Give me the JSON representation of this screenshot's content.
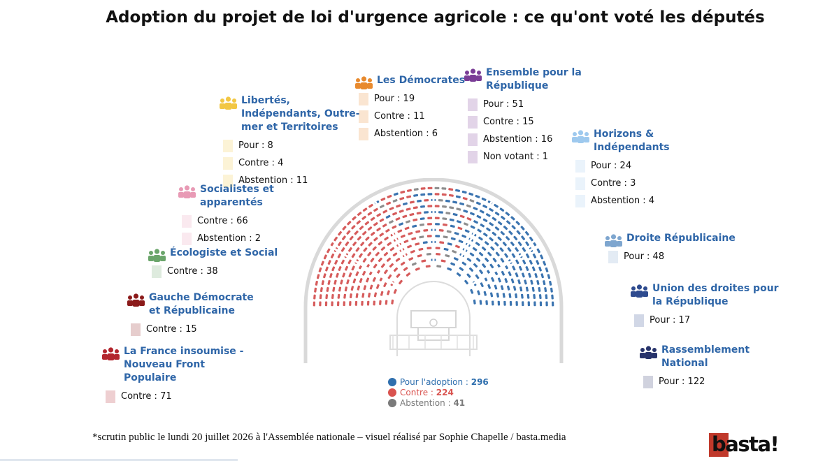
{
  "title": "Adoption du projet de loi d'urgence agricole : ce qu'ont voté les députés",
  "footer": "*scrutin public le lundi 20 juillet 2026 à l'Assemblée nationale – visuel réalisé par Sophie Chapelle / basta.media",
  "logo": "basta!",
  "colors": {
    "pour": "#3b74b0",
    "contre": "#d65b5b",
    "abstention": "#8e8e8e",
    "hemicycle_frame": "#d9d9d9"
  },
  "chart_data": {
    "type": "hemicycle",
    "totals": [
      {
        "key": "pour",
        "label": "Pour l'adoption :",
        "value": "296",
        "color": "#2f6fae"
      },
      {
        "key": "contre",
        "label": "Contre :",
        "value": "224",
        "color": "#d9534f"
      },
      {
        "key": "abstention",
        "label": "Abstention :",
        "value": "41",
        "color": "#7a7a7a"
      }
    ],
    "groups": [
      {
        "name": "La France insoumise - Nouveau Front Populaire",
        "color": "#b3262e",
        "stats": [
          {
            "label": "Contre : 71",
            "value": 71
          }
        ]
      },
      {
        "name": "Gauche Démocrate et Républicaine",
        "color": "#8b1a1a",
        "stats": [
          {
            "label": "Contre : 15",
            "value": 15
          }
        ]
      },
      {
        "name": "Écologiste et Social",
        "color": "#6aa56a",
        "stats": [
          {
            "label": "Contre : 38",
            "value": 38
          }
        ]
      },
      {
        "name": "Socialistes et apparentés",
        "color": "#e89ab5",
        "stats": [
          {
            "label": "Contre : 66",
            "value": 66
          },
          {
            "label": "Abstention : 2",
            "value": 2
          }
        ]
      },
      {
        "name": "Libertés, Indépendants, Outre-mer et Territoires",
        "color": "#f2c744",
        "stats": [
          {
            "label": "Pour : 8",
            "value": 8
          },
          {
            "label": "Contre : 4",
            "value": 4
          },
          {
            "label": "Abstention : 11",
            "value": 11
          }
        ]
      },
      {
        "name": "Les Démocrates",
        "color": "#e88a2e",
        "stats": [
          {
            "label": "Pour : 19",
            "value": 19
          },
          {
            "label": "Contre : 11",
            "value": 11
          },
          {
            "label": "Abstention : 6",
            "value": 6
          }
        ]
      },
      {
        "name": "Ensemble pour la République",
        "color": "#7a3d96",
        "stats": [
          {
            "label": "Pour : 51",
            "value": 51
          },
          {
            "label": "Contre : 15",
            "value": 15
          },
          {
            "label": "Abstention : 16",
            "value": 16
          },
          {
            "label": "Non votant : 1",
            "value": 1
          }
        ]
      },
      {
        "name": "Horizons & Indépendants",
        "color": "#9ec9ee",
        "stats": [
          {
            "label": "Pour : 24",
            "value": 24
          },
          {
            "label": "Contre : 3",
            "value": 3
          },
          {
            "label": "Abstention : 4",
            "value": 4
          }
        ]
      },
      {
        "name": "Droite Républicaine",
        "color": "#7ea6cf",
        "stats": [
          {
            "label": "Pour : 48",
            "value": 48
          }
        ]
      },
      {
        "name": "Union des droites pour la République",
        "color": "#2e4b8f",
        "stats": [
          {
            "label": "Pour : 17",
            "value": 17
          }
        ]
      },
      {
        "name": "Rassemblement National",
        "color": "#27336b",
        "stats": [
          {
            "label": "Pour : 122",
            "value": 122
          }
        ]
      }
    ]
  }
}
